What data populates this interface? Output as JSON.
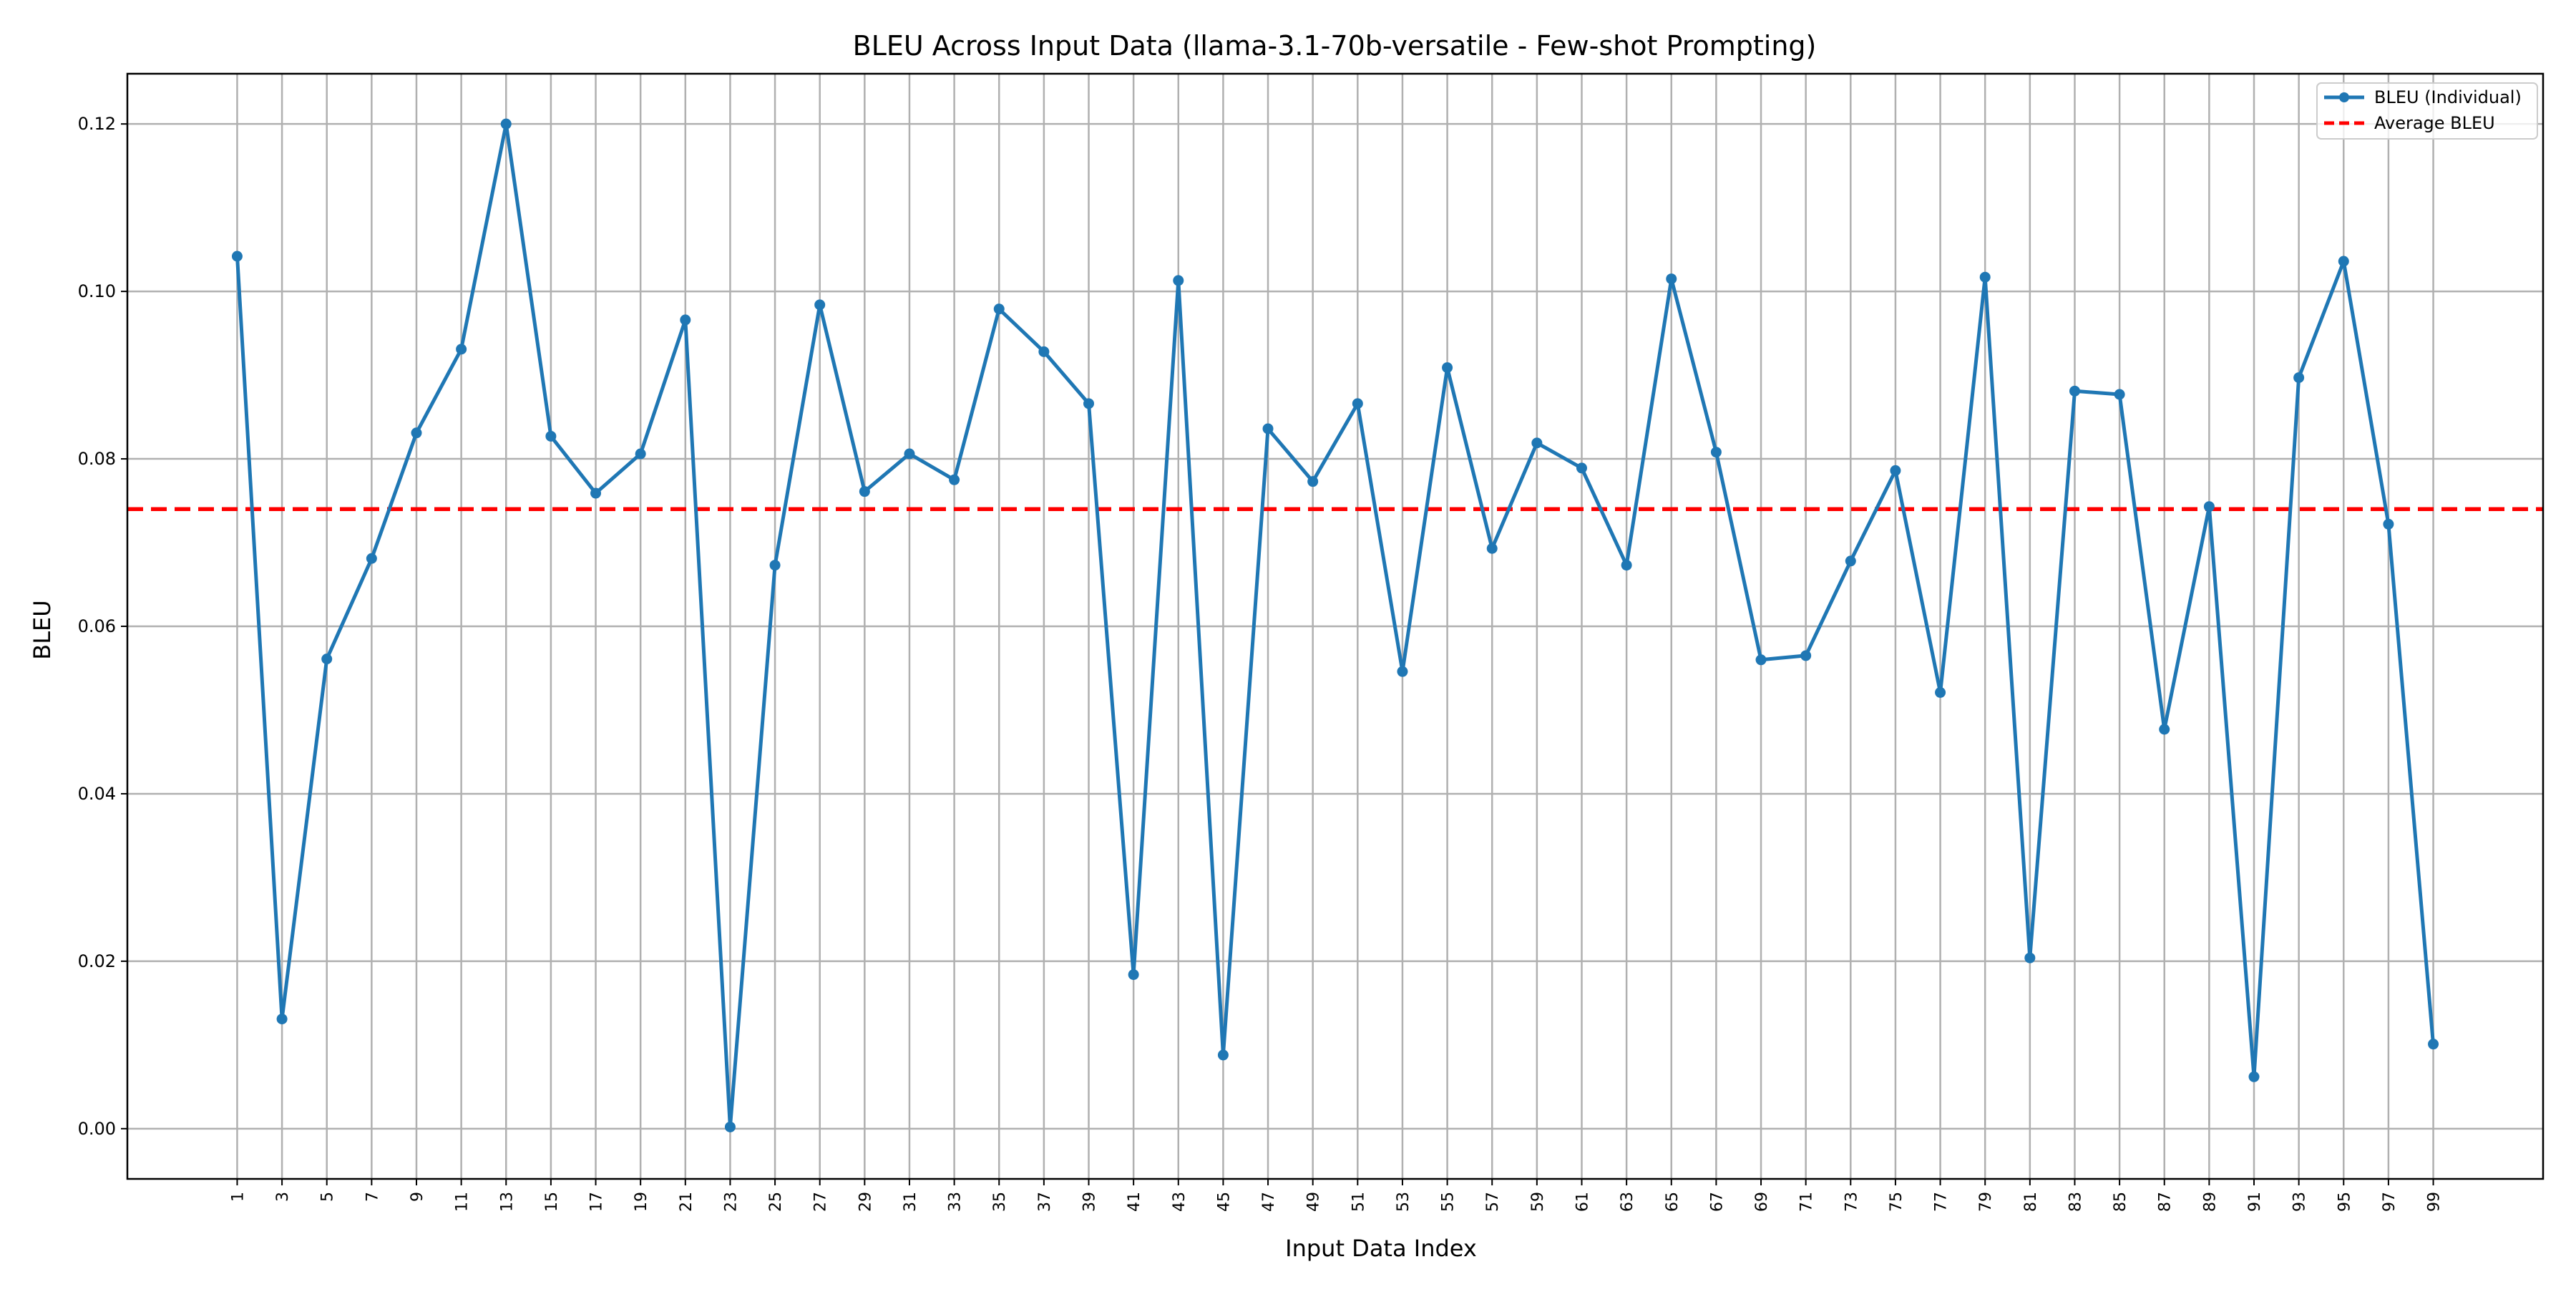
{
  "colors": {
    "line": "#1f77b4",
    "average": "#ff0000",
    "grid": "#b0b0b0",
    "axes": "#000000"
  },
  "chart_data": {
    "type": "line",
    "title": "BLEU Across Input Data (llama-3.1-70b-versatile - Few-shot Prompting)",
    "xlabel": "Input Data Index",
    "ylabel": "BLEU",
    "x": [
      1,
      3,
      5,
      7,
      9,
      11,
      13,
      15,
      17,
      19,
      21,
      23,
      25,
      27,
      29,
      31,
      33,
      35,
      37,
      39,
      41,
      43,
      45,
      47,
      49,
      51,
      53,
      55,
      57,
      59,
      61,
      63,
      65,
      67,
      69,
      71,
      73,
      75,
      77,
      79,
      81,
      83,
      85,
      87,
      89,
      91,
      93,
      95,
      97,
      99
    ],
    "x_tick_labels": [
      "1",
      "3",
      "5",
      "7",
      "9",
      "11",
      "13",
      "15",
      "17",
      "19",
      "21",
      "23",
      "25",
      "27",
      "29",
      "31",
      "33",
      "35",
      "37",
      "39",
      "41",
      "43",
      "45",
      "47",
      "49",
      "51",
      "53",
      "55",
      "57",
      "59",
      "61",
      "63",
      "65",
      "67",
      "69",
      "71",
      "73",
      "75",
      "77",
      "79",
      "81",
      "83",
      "85",
      "87",
      "89",
      "91",
      "93",
      "95",
      "97",
      "99"
    ],
    "xlim": [
      -3.9,
      103.9
    ],
    "ylim": [
      -0.006,
      0.126
    ],
    "y_ticks": [
      0.0,
      0.02,
      0.04,
      0.06,
      0.08,
      0.1,
      0.12
    ],
    "y_tick_labels": [
      "0.00",
      "0.02",
      "0.04",
      "0.06",
      "0.08",
      "0.10",
      "0.12"
    ],
    "series": [
      {
        "name": "BLEU (Individual)",
        "style": "solid-with-markers",
        "values": [
          0.1042,
          0.0131,
          0.0561,
          0.0681,
          0.0831,
          0.0931,
          0.12,
          0.0827,
          0.0759,
          0.0806,
          0.0966,
          0.0002,
          0.0673,
          0.0984,
          0.0761,
          0.0806,
          0.0775,
          0.0979,
          0.0928,
          0.0866,
          0.0184,
          0.1013,
          0.0088,
          0.0836,
          0.0773,
          0.0866,
          0.0546,
          0.0909,
          0.0693,
          0.0819,
          0.0789,
          0.0673,
          0.1015,
          0.0808,
          0.056,
          0.0565,
          0.0678,
          0.0786,
          0.0521,
          0.1017,
          0.0204,
          0.0881,
          0.0877,
          0.0477,
          0.0743,
          0.0062,
          0.0897,
          0.1036,
          0.0722,
          0.0101
        ]
      },
      {
        "name": "Average BLEU",
        "style": "dashed",
        "value": 0.074
      }
    ],
    "grid": true,
    "legend_position": "top-right"
  }
}
